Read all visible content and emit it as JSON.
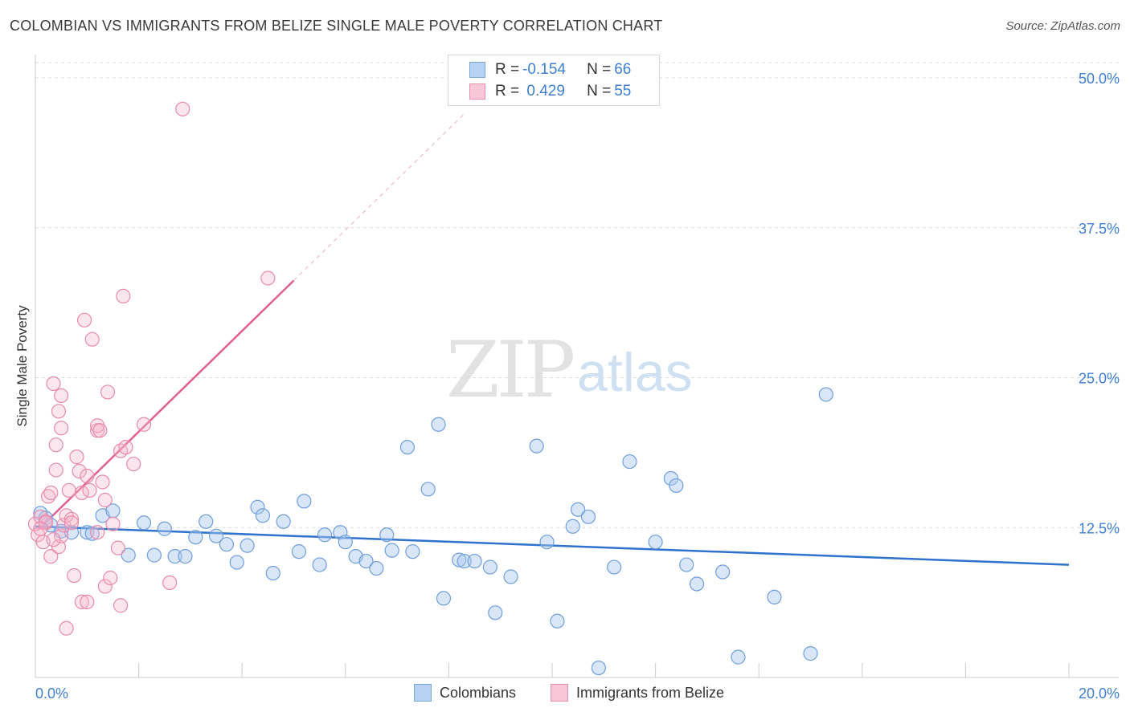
{
  "title": "COLOMBIAN VS IMMIGRANTS FROM BELIZE SINGLE MALE POVERTY CORRELATION CHART",
  "source": "Source: ZipAtlas.com",
  "watermark": {
    "zip": "ZIP",
    "atlas": "atlas"
  },
  "legend": {
    "colombians": {
      "r_label": "R = ",
      "r_value": "-0.154",
      "n_label": "N = ",
      "n_value": "66"
    },
    "belize": {
      "r_label": "R = ",
      "r_value": " 0.429",
      "n_label": "N = ",
      "n_value": "55"
    }
  },
  "bottom_legend": {
    "colombians": "Colombians",
    "belize": "Immigrants from Belize"
  },
  "colors": {
    "blue": "#3b7dd8",
    "blue_fill": "#a8c8f0",
    "pink": "#e06090",
    "pink_fill": "#f5b8cc"
  },
  "chart_data": {
    "type": "scatter",
    "title": "COLOMBIAN VS IMMIGRANTS FROM BELIZE SINGLE MALE POVERTY CORRELATION CHART",
    "xlabel": "",
    "ylabel": "Single Male Poverty",
    "xlim": [
      0,
      20
    ],
    "ylim": [
      0,
      51.5
    ],
    "x_tick_labels": [
      "0.0%",
      "20.0%"
    ],
    "y_ticks": [
      12.5,
      25.0,
      37.5,
      50.0
    ],
    "y_tick_labels": [
      "12.5%",
      "25.0%",
      "37.5%",
      "50.0%"
    ],
    "series": [
      {
        "name": "Colombians",
        "color": "#3b7dd8",
        "trend": {
          "x": [
            0,
            20
          ],
          "y": [
            12.6,
            9.4
          ]
        },
        "points": [
          [
            0.1,
            13.7
          ],
          [
            0.2,
            13.3
          ],
          [
            0.3,
            12.7
          ],
          [
            0.5,
            12.2
          ],
          [
            0.7,
            12.1
          ],
          [
            1.0,
            12.1
          ],
          [
            1.1,
            12.0
          ],
          [
            1.3,
            13.5
          ],
          [
            1.5,
            13.9
          ],
          [
            1.8,
            10.2
          ],
          [
            2.1,
            12.9
          ],
          [
            2.3,
            10.2
          ],
          [
            2.5,
            12.4
          ],
          [
            2.7,
            10.1
          ],
          [
            2.9,
            10.1
          ],
          [
            3.1,
            11.7
          ],
          [
            3.3,
            13.0
          ],
          [
            3.5,
            11.8
          ],
          [
            3.7,
            11.1
          ],
          [
            3.9,
            9.6
          ],
          [
            4.1,
            11.0
          ],
          [
            4.3,
            14.2
          ],
          [
            4.4,
            13.5
          ],
          [
            4.6,
            8.7
          ],
          [
            4.8,
            13.0
          ],
          [
            5.1,
            10.5
          ],
          [
            5.2,
            14.7
          ],
          [
            5.5,
            9.4
          ],
          [
            5.6,
            11.9
          ],
          [
            5.9,
            12.1
          ],
          [
            6.0,
            11.3
          ],
          [
            6.2,
            10.1
          ],
          [
            6.4,
            9.7
          ],
          [
            6.6,
            9.1
          ],
          [
            6.8,
            11.9
          ],
          [
            6.9,
            10.6
          ],
          [
            7.2,
            19.2
          ],
          [
            7.3,
            10.5
          ],
          [
            7.6,
            15.7
          ],
          [
            7.8,
            21.1
          ],
          [
            7.9,
            6.6
          ],
          [
            8.2,
            9.8
          ],
          [
            8.3,
            9.7
          ],
          [
            8.5,
            9.7
          ],
          [
            8.8,
            9.2
          ],
          [
            8.9,
            5.4
          ],
          [
            9.2,
            8.4
          ],
          [
            9.7,
            19.3
          ],
          [
            9.9,
            11.3
          ],
          [
            10.1,
            4.7
          ],
          [
            10.4,
            12.6
          ],
          [
            10.5,
            14.0
          ],
          [
            10.7,
            13.4
          ],
          [
            11.2,
            9.2
          ],
          [
            11.5,
            18.0
          ],
          [
            12.0,
            11.3
          ],
          [
            12.3,
            16.6
          ],
          [
            12.4,
            16.0
          ],
          [
            12.6,
            9.4
          ],
          [
            12.8,
            7.8
          ],
          [
            13.3,
            8.8
          ],
          [
            13.6,
            1.7
          ],
          [
            14.3,
            6.7
          ],
          [
            15.0,
            2.0
          ],
          [
            15.3,
            23.6
          ],
          [
            10.9,
            0.8
          ]
        ]
      },
      {
        "name": "Immigrants from Belize",
        "color": "#e06090",
        "trend": {
          "x": [
            0.05,
            5.0
          ],
          "y": [
            12.3,
            33.1
          ]
        },
        "trend_extension": {
          "x": [
            5.0,
            8.3
          ],
          "y": [
            33.1,
            47.0
          ]
        },
        "points": [
          [
            0.0,
            12.8
          ],
          [
            0.05,
            11.9
          ],
          [
            0.1,
            13.4
          ],
          [
            0.15,
            11.3
          ],
          [
            0.2,
            12.9
          ],
          [
            0.25,
            15.1
          ],
          [
            0.3,
            10.1
          ],
          [
            0.3,
            15.4
          ],
          [
            0.35,
            24.5
          ],
          [
            0.4,
            17.3
          ],
          [
            0.4,
            19.4
          ],
          [
            0.45,
            10.9
          ],
          [
            0.45,
            22.2
          ],
          [
            0.5,
            11.8
          ],
          [
            0.5,
            23.5
          ],
          [
            0.5,
            20.8
          ],
          [
            0.55,
            12.7
          ],
          [
            0.6,
            4.1
          ],
          [
            0.6,
            13.5
          ],
          [
            0.65,
            15.6
          ],
          [
            0.7,
            13.2
          ],
          [
            0.7,
            12.9
          ],
          [
            0.75,
            8.5
          ],
          [
            0.8,
            18.4
          ],
          [
            0.85,
            17.2
          ],
          [
            0.9,
            15.4
          ],
          [
            0.9,
            6.3
          ],
          [
            0.95,
            29.8
          ],
          [
            1.0,
            16.8
          ],
          [
            1.0,
            6.3
          ],
          [
            1.05,
            15.6
          ],
          [
            1.1,
            28.2
          ],
          [
            1.2,
            12.1
          ],
          [
            1.2,
            20.6
          ],
          [
            1.2,
            21.0
          ],
          [
            1.25,
            20.6
          ],
          [
            1.3,
            16.3
          ],
          [
            1.35,
            14.8
          ],
          [
            1.35,
            7.6
          ],
          [
            1.4,
            23.8
          ],
          [
            1.45,
            8.3
          ],
          [
            1.5,
            12.8
          ],
          [
            1.6,
            10.8
          ],
          [
            1.65,
            18.9
          ],
          [
            1.65,
            6.0
          ],
          [
            1.7,
            31.8
          ],
          [
            1.75,
            19.2
          ],
          [
            1.9,
            17.8
          ],
          [
            2.1,
            21.1
          ],
          [
            2.6,
            7.9
          ],
          [
            2.85,
            47.4
          ],
          [
            4.5,
            33.3
          ],
          [
            0.2,
            13.0
          ],
          [
            0.1,
            12.4
          ],
          [
            0.35,
            11.5
          ]
        ]
      }
    ]
  }
}
